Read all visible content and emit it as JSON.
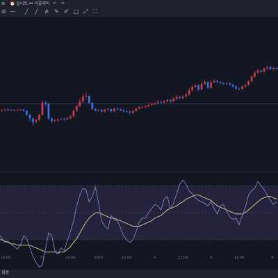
{
  "toolbar": {
    "items": [
      {
        "icon": "gear-icon",
        "glyph": "⚙"
      },
      {
        "icon": "bell-icon",
        "label": "알리트"
      },
      {
        "icon": "replay-icon",
        "label": "리플레이"
      },
      {
        "icon": "undo-icon",
        "glyph": "↶"
      },
      {
        "icon": "redo-icon",
        "glyph": "↷"
      }
    ],
    "drawing_icons": [
      {
        "icon": "ban-icon",
        "glyph": "⊘"
      },
      {
        "icon": "horizontal-line-icon",
        "glyph": "—"
      },
      {
        "icon": "diagonal-line-icon",
        "glyph": "╱"
      },
      {
        "icon": "diagonal-line-icon",
        "glyph": "╱"
      },
      {
        "icon": "fork-icon",
        "glyph": "⋔"
      },
      {
        "icon": "pencil-icon",
        "glyph": "✎"
      },
      {
        "icon": "brush-icon",
        "glyph": "✐"
      },
      {
        "icon": "square-icon",
        "glyph": "□"
      },
      {
        "icon": "expand-icon",
        "glyph": "⤢"
      },
      {
        "icon": "fullscreen-icon",
        "glyph": "⛶"
      }
    ]
  },
  "colors": {
    "background": "#131722",
    "up": "#c73e4f",
    "down": "#3d6fe6",
    "rsi_line": "#8a8fd6",
    "ma_line": "#d2c48a",
    "rsi_band": "#2a2544",
    "dashed": "#3e4560",
    "axis_text": "#787b86"
  },
  "status_bar": {
    "label": "회봉"
  },
  "chart_data": {
    "type": "candlestick",
    "price_panel": {
      "baseline_level": 127.5,
      "y_range": [
        100,
        162
      ],
      "grid": false,
      "candles": [
        [
          125.0,
          124.6,
          125.5,
          124.0
        ],
        [
          124.6,
          124.9,
          125.3,
          124.1
        ],
        [
          124.9,
          125.1,
          125.5,
          124.4
        ],
        [
          125.1,
          124.9,
          125.6,
          124.4
        ],
        [
          124.9,
          125.0,
          125.4,
          124.5
        ],
        [
          125.0,
          124.7,
          125.4,
          124.3
        ],
        [
          124.7,
          124.9,
          125.3,
          124.3
        ],
        [
          124.9,
          125.1,
          125.4,
          124.5
        ],
        [
          125.1,
          124.6,
          125.5,
          124.2
        ],
        [
          124.6,
          123.0,
          124.9,
          122.5
        ],
        [
          123.0,
          121.5,
          123.4,
          120.5
        ],
        [
          121.5,
          120.0,
          122.0,
          118.6
        ],
        [
          120.0,
          120.9,
          121.3,
          119.5
        ],
        [
          120.9,
          122.9,
          123.5,
          120.5
        ],
        [
          122.9,
          128.0,
          129.0,
          122.5
        ],
        [
          128.0,
          127.5,
          128.7,
          126.6
        ],
        [
          127.5,
          121.5,
          128.0,
          120.8
        ],
        [
          121.5,
          120.4,
          122.0,
          119.4
        ],
        [
          120.4,
          120.7,
          121.3,
          119.9
        ],
        [
          120.7,
          121.1,
          121.5,
          120.2
        ],
        [
          121.1,
          121.3,
          121.7,
          120.6
        ],
        [
          121.3,
          121.1,
          121.8,
          120.6
        ],
        [
          121.1,
          121.6,
          122.0,
          120.7
        ],
        [
          121.6,
          122.4,
          123.0,
          121.1
        ],
        [
          122.4,
          124.6,
          125.2,
          121.9
        ],
        [
          124.6,
          126.5,
          127.2,
          124.2
        ],
        [
          126.5,
          128.5,
          129.5,
          126.1
        ],
        [
          128.5,
          130.5,
          131.8,
          128.0
        ],
        [
          130.5,
          130.7,
          132.5,
          129.5
        ],
        [
          130.7,
          127.9,
          131.0,
          127.3
        ],
        [
          127.9,
          125.4,
          128.3,
          124.8
        ],
        [
          125.4,
          124.7,
          125.8,
          124.2
        ],
        [
          124.7,
          125.0,
          125.4,
          124.3
        ],
        [
          125.0,
          124.3,
          125.5,
          123.8
        ],
        [
          124.3,
          125.1,
          125.6,
          123.9
        ],
        [
          125.1,
          125.3,
          125.8,
          124.7
        ],
        [
          125.3,
          124.4,
          125.7,
          123.9
        ],
        [
          124.4,
          125.5,
          126.0,
          124.0
        ],
        [
          125.5,
          125.3,
          126.0,
          124.7
        ],
        [
          125.3,
          124.9,
          125.8,
          124.3
        ],
        [
          124.9,
          124.4,
          125.4,
          123.9
        ],
        [
          124.4,
          124.3,
          124.8,
          123.9
        ],
        [
          124.3,
          123.9,
          124.8,
          123.4
        ],
        [
          123.9,
          124.6,
          125.0,
          123.4
        ],
        [
          124.6,
          125.5,
          126.0,
          124.2
        ],
        [
          125.5,
          126.1,
          126.6,
          125.1
        ],
        [
          126.1,
          126.1,
          126.6,
          125.6
        ],
        [
          126.1,
          126.5,
          127.0,
          125.7
        ],
        [
          126.5,
          127.0,
          127.6,
          126.1
        ],
        [
          127.0,
          127.3,
          127.9,
          126.6
        ],
        [
          127.3,
          127.7,
          128.4,
          126.9
        ],
        [
          127.7,
          128.3,
          128.9,
          127.3
        ],
        [
          128.3,
          128.0,
          128.8,
          127.5
        ],
        [
          128.0,
          128.5,
          129.1,
          127.6
        ],
        [
          128.5,
          129.0,
          129.6,
          128.1
        ],
        [
          129.0,
          128.5,
          129.5,
          128.0
        ],
        [
          128.5,
          129.5,
          130.2,
          128.2
        ],
        [
          129.5,
          130.3,
          131.2,
          129.0
        ],
        [
          130.3,
          129.8,
          130.9,
          129.4
        ],
        [
          129.8,
          130.5,
          131.1,
          129.4
        ],
        [
          130.5,
          131.2,
          131.9,
          130.1
        ],
        [
          131.2,
          133.1,
          133.9,
          130.8
        ],
        [
          133.1,
          134.4,
          135.2,
          132.6
        ],
        [
          134.4,
          135.0,
          135.8,
          134.0
        ],
        [
          135.0,
          133.3,
          135.5,
          132.7
        ],
        [
          133.3,
          135.6,
          136.5,
          133.0
        ],
        [
          135.6,
          136.4,
          137.4,
          135.1
        ],
        [
          136.4,
          134.0,
          136.9,
          133.5
        ],
        [
          134.0,
          136.2,
          137.1,
          133.8
        ],
        [
          136.2,
          136.9,
          137.6,
          135.9
        ],
        [
          136.9,
          136.4,
          137.4,
          135.9
        ],
        [
          136.4,
          136.0,
          136.8,
          135.6
        ],
        [
          136.0,
          135.6,
          136.4,
          135.2
        ],
        [
          135.6,
          135.9,
          136.3,
          135.2
        ],
        [
          135.9,
          135.3,
          136.3,
          134.9
        ],
        [
          135.3,
          134.6,
          135.7,
          134.2
        ],
        [
          134.6,
          133.7,
          135.0,
          133.2
        ],
        [
          133.7,
          133.5,
          134.2,
          133.0
        ],
        [
          133.5,
          134.6,
          135.0,
          133.1
        ],
        [
          134.6,
          135.2,
          135.7,
          134.2
        ],
        [
          135.2,
          136.7,
          137.2,
          134.9
        ],
        [
          136.7,
          138.6,
          139.2,
          136.3
        ],
        [
          138.6,
          140.2,
          140.9,
          138.1
        ],
        [
          140.2,
          141.1,
          141.8,
          139.7
        ],
        [
          141.1,
          140.6,
          141.6,
          140.1
        ],
        [
          140.6,
          141.9,
          142.4,
          140.2
        ],
        [
          141.9,
          142.5,
          143.1,
          141.5
        ],
        [
          142.5,
          141.7,
          143.0,
          141.2
        ],
        [
          141.7,
          142.1,
          142.7,
          141.3
        ],
        [
          142.1,
          141.9,
          142.6,
          141.4
        ]
      ]
    },
    "rsi_panel": {
      "y_range": [
        0,
        100
      ],
      "band": [
        30,
        70
      ],
      "mid": 50,
      "rsi_values": [
        35,
        31,
        28,
        29,
        27,
        25,
        23,
        26,
        33,
        31,
        24,
        18,
        13,
        10,
        11,
        23,
        35,
        33,
        22,
        20,
        24,
        22,
        29,
        36,
        44,
        55,
        63,
        68,
        67,
        58,
        62,
        69,
        57,
        44,
        40,
        38,
        48,
        45,
        44,
        39,
        33,
        30,
        28,
        30,
        36,
        43,
        46,
        46,
        50,
        53,
        56,
        55,
        52,
        60,
        62,
        53,
        57,
        64,
        71,
        74,
        71,
        66,
        64,
        61,
        59,
        58,
        57,
        55,
        58,
        53,
        49,
        55,
        56,
        51,
        47,
        45,
        46,
        41,
        48,
        54,
        63,
        66,
        68,
        73,
        70,
        67,
        63,
        59,
        56,
        58
      ],
      "ma_values": [
        30,
        30,
        29,
        28,
        27,
        27,
        26,
        26,
        26,
        26,
        26,
        25,
        24,
        23,
        22,
        21,
        21,
        21,
        21,
        20,
        21,
        21,
        23,
        25,
        28,
        31,
        35,
        39,
        43,
        46,
        48,
        50,
        50,
        49,
        48,
        47,
        46,
        46,
        45,
        44,
        43,
        42,
        41,
        40,
        40,
        40,
        41,
        42,
        43,
        44,
        46,
        47,
        48,
        50,
        52,
        53,
        54,
        55,
        57,
        58,
        60,
        61,
        62,
        63,
        63,
        62,
        61,
        60,
        59,
        57,
        55,
        54,
        53,
        52,
        51,
        50,
        49,
        49,
        49,
        50,
        52,
        54,
        56,
        58,
        60,
        61,
        62,
        62,
        61,
        60
      ]
    },
    "x_tick_labels": [
      {
        "index": 0,
        "label": "12:00"
      },
      {
        "index": 14,
        "label": "31"
      },
      {
        "index": 23,
        "label": "12:00"
      },
      {
        "index": 32,
        "label": "2025"
      },
      {
        "index": 41,
        "label": "12:00"
      },
      {
        "index": 50,
        "label": "2"
      },
      {
        "index": 59,
        "label": "12:00"
      },
      {
        "index": 68,
        "label": "3"
      },
      {
        "index": 77,
        "label": "12:00"
      },
      {
        "index": 88,
        "label": "4"
      }
    ]
  }
}
